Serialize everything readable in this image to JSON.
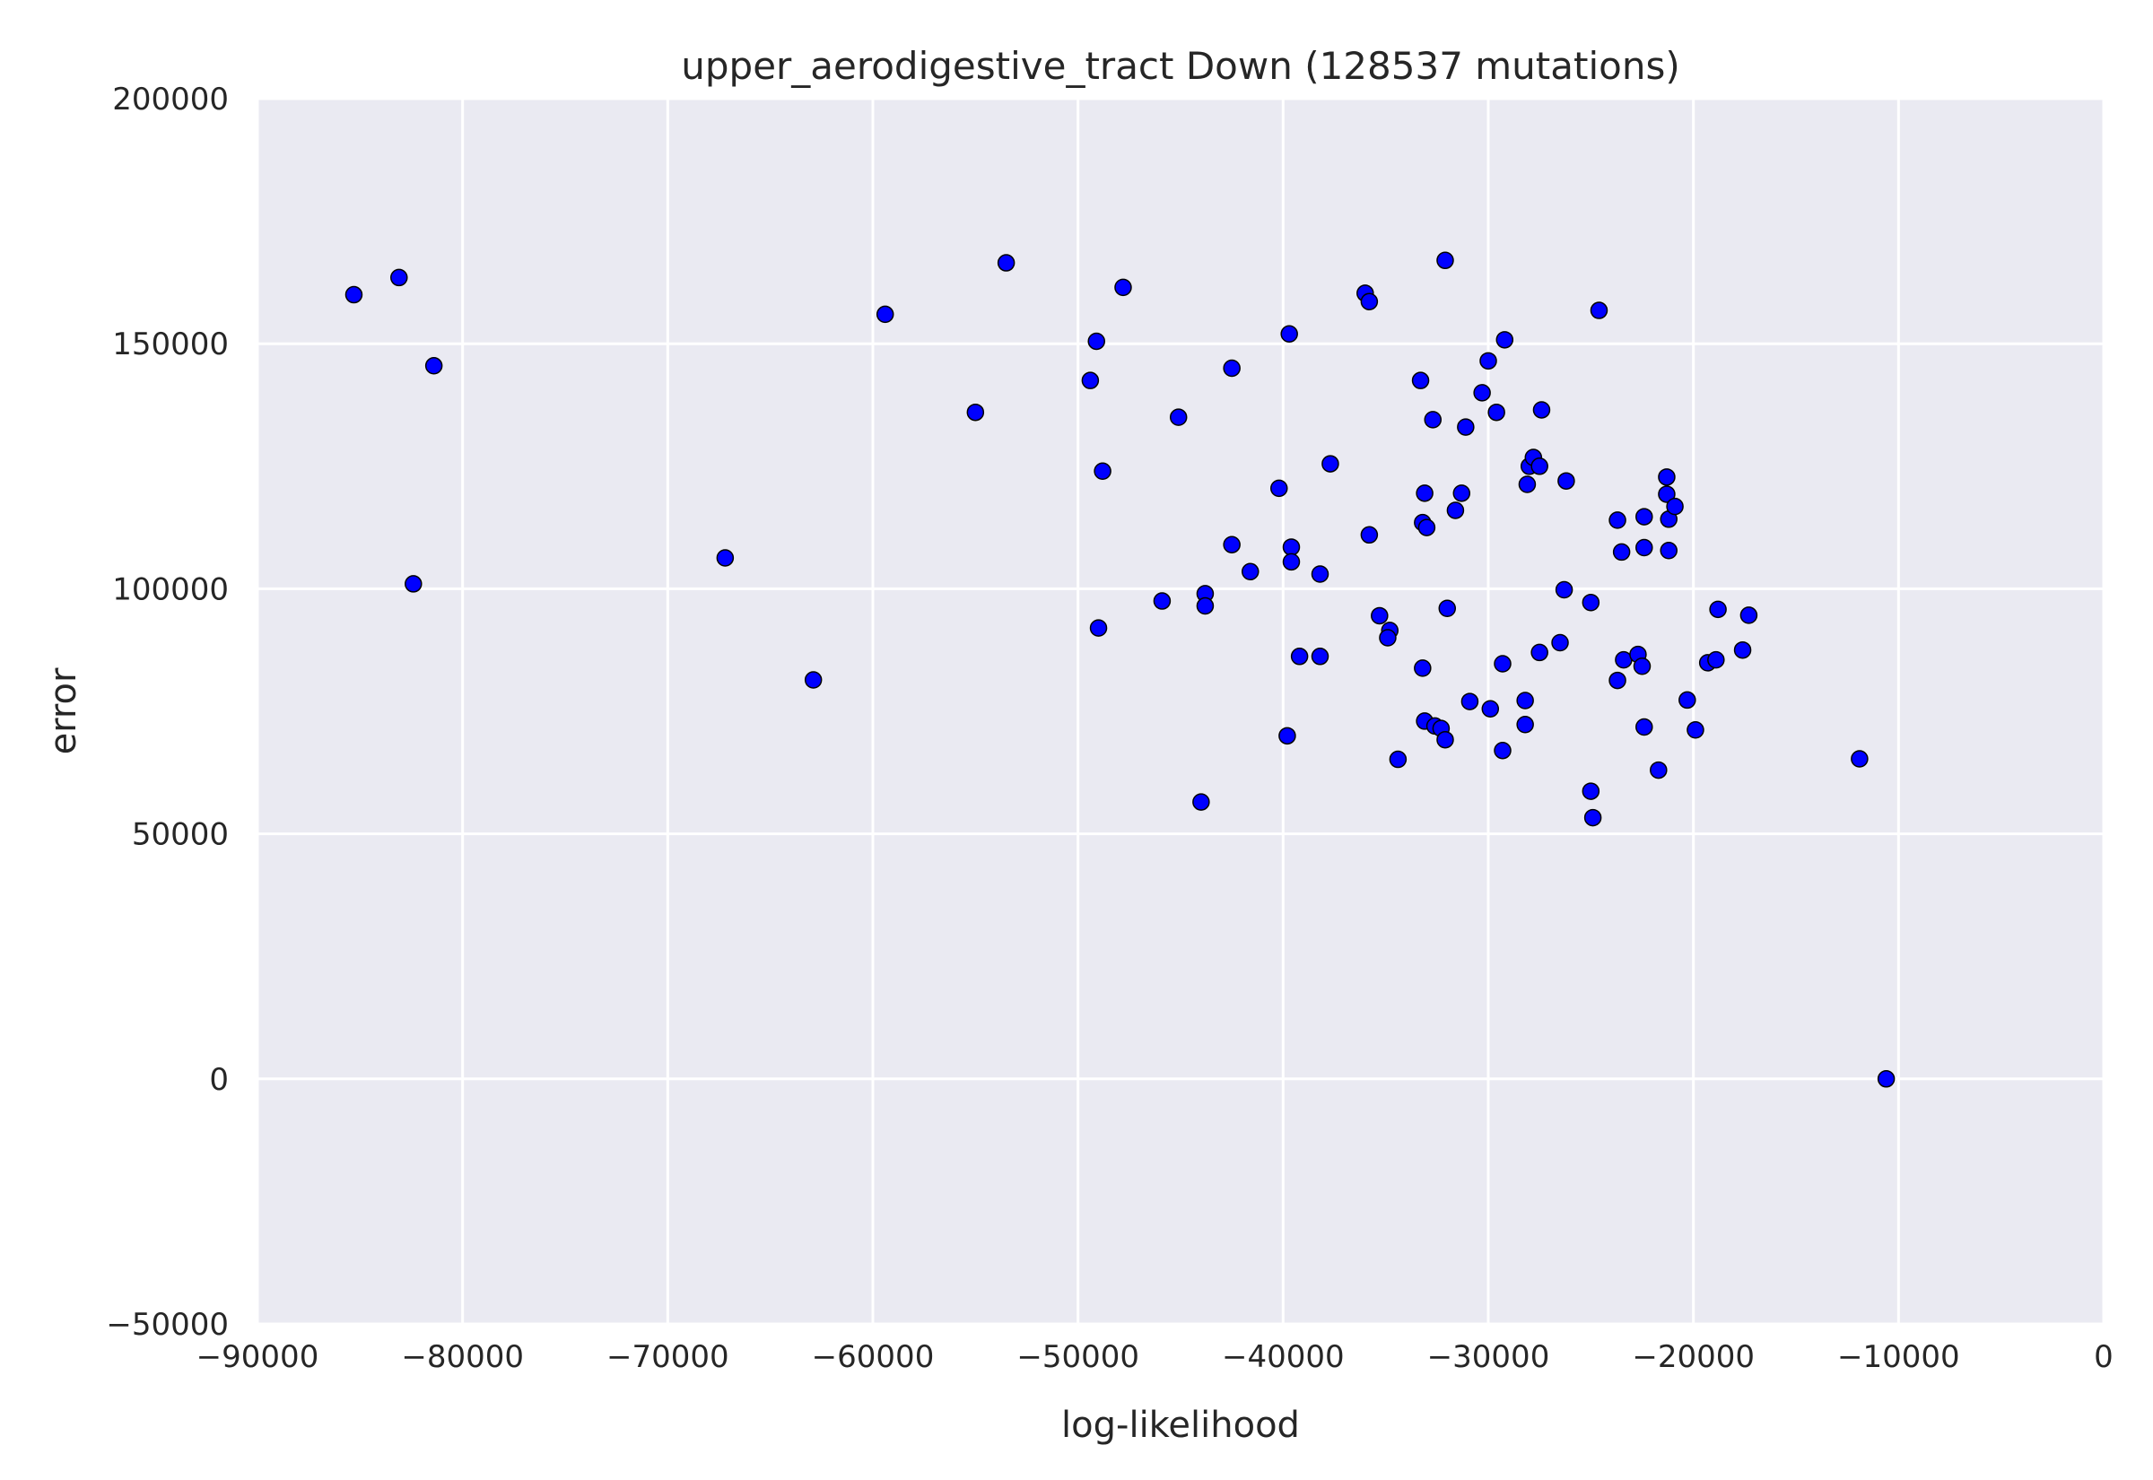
{
  "chart_data": {
    "type": "scatter",
    "title": "upper_aerodigestive_tract Down (128537 mutations)",
    "xlabel": "log-likelihood",
    "ylabel": "error",
    "xlim": [
      -90000,
      0
    ],
    "ylim": [
      -50000,
      200000
    ],
    "xticks": [
      -90000,
      -80000,
      -70000,
      -60000,
      -50000,
      -40000,
      -30000,
      -20000,
      -10000,
      0
    ],
    "yticks": [
      -50000,
      0,
      50000,
      100000,
      150000,
      200000
    ],
    "xtick_labels": [
      "−90000",
      "−80000",
      "−70000",
      "−60000",
      "−50000",
      "−40000",
      "−30000",
      "−20000",
      "−10000",
      "0"
    ],
    "ytick_labels": [
      "−50000",
      "0",
      "50000",
      "100000",
      "150000",
      "200000"
    ],
    "grid": true,
    "colors": {
      "background": "#eaeaf2",
      "grid": "#ffffff",
      "point_fill": "#0000ff",
      "point_edge": "#000000"
    },
    "points": [
      [
        -85300,
        160000
      ],
      [
        -83100,
        163500
      ],
      [
        -81400,
        145500
      ],
      [
        -82400,
        101000
      ],
      [
        -67200,
        106300
      ],
      [
        -62900,
        81400
      ],
      [
        -59400,
        156000
      ],
      [
        -55000,
        136000
      ],
      [
        -53500,
        166500
      ],
      [
        -49400,
        142500
      ],
      [
        -49100,
        150500
      ],
      [
        -48800,
        124000
      ],
      [
        -49000,
        92000
      ],
      [
        -47800,
        161500
      ],
      [
        -45900,
        97500
      ],
      [
        -45100,
        135000
      ],
      [
        -43800,
        99000
      ],
      [
        -43800,
        96500
      ],
      [
        -44000,
        56500
      ],
      [
        -42500,
        145000
      ],
      [
        -42500,
        109000
      ],
      [
        -41600,
        103500
      ],
      [
        -40200,
        120500
      ],
      [
        -39700,
        152000
      ],
      [
        -39600,
        108500
      ],
      [
        -39600,
        105500
      ],
      [
        -39800,
        70000
      ],
      [
        -39200,
        86200
      ],
      [
        -38200,
        103000
      ],
      [
        -38200,
        86200
      ],
      [
        -37700,
        125500
      ],
      [
        -36000,
        160300
      ],
      [
        -35800,
        158600
      ],
      [
        -35800,
        111000
      ],
      [
        -35300,
        94500
      ],
      [
        -34800,
        91500
      ],
      [
        -34900,
        90000
      ],
      [
        -34400,
        65200
      ],
      [
        -33300,
        142500
      ],
      [
        -33200,
        113500
      ],
      [
        -33100,
        119500
      ],
      [
        -33000,
        112500
      ],
      [
        -33200,
        83800
      ],
      [
        -33100,
        73000
      ],
      [
        -32700,
        134500
      ],
      [
        -32600,
        72000
      ],
      [
        -32300,
        71500
      ],
      [
        -32100,
        69200
      ],
      [
        -32100,
        167000
      ],
      [
        -32000,
        96000
      ],
      [
        -31600,
        116000
      ],
      [
        -31300,
        119500
      ],
      [
        -31100,
        133000
      ],
      [
        -30900,
        77000
      ],
      [
        -30300,
        140000
      ],
      [
        -30000,
        146500
      ],
      [
        -29900,
        75500
      ],
      [
        -29600,
        136000
      ],
      [
        -29200,
        150800
      ],
      [
        -29300,
        84700
      ],
      [
        -29300,
        67000
      ],
      [
        -28200,
        77200
      ],
      [
        -28200,
        72300
      ],
      [
        -28100,
        121300
      ],
      [
        -28000,
        125000
      ],
      [
        -27800,
        126800
      ],
      [
        -27500,
        125000
      ],
      [
        -27400,
        136500
      ],
      [
        -27500,
        87000
      ],
      [
        -26500,
        89000
      ],
      [
        -26300,
        99800
      ],
      [
        -26200,
        122000
      ],
      [
        -25000,
        97200
      ],
      [
        -25000,
        58700
      ],
      [
        -24900,
        53300
      ],
      [
        -24600,
        156800
      ],
      [
        -23700,
        114000
      ],
      [
        -23700,
        81300
      ],
      [
        -23500,
        107500
      ],
      [
        -23400,
        85500
      ],
      [
        -22700,
        86600
      ],
      [
        -22500,
        84200
      ],
      [
        -22400,
        114700
      ],
      [
        -22400,
        108400
      ],
      [
        -22400,
        71800
      ],
      [
        -21700,
        63000
      ],
      [
        -21300,
        122800
      ],
      [
        -21300,
        119300
      ],
      [
        -21200,
        114200
      ],
      [
        -21200,
        107800
      ],
      [
        -20900,
        116800
      ],
      [
        -20300,
        77300
      ],
      [
        -19900,
        71200
      ],
      [
        -19300,
        84900
      ],
      [
        -18900,
        85500
      ],
      [
        -18800,
        95800
      ],
      [
        -17600,
        87500
      ],
      [
        -17300,
        94600
      ],
      [
        -11900,
        65300
      ],
      [
        -10600,
        0
      ]
    ]
  }
}
